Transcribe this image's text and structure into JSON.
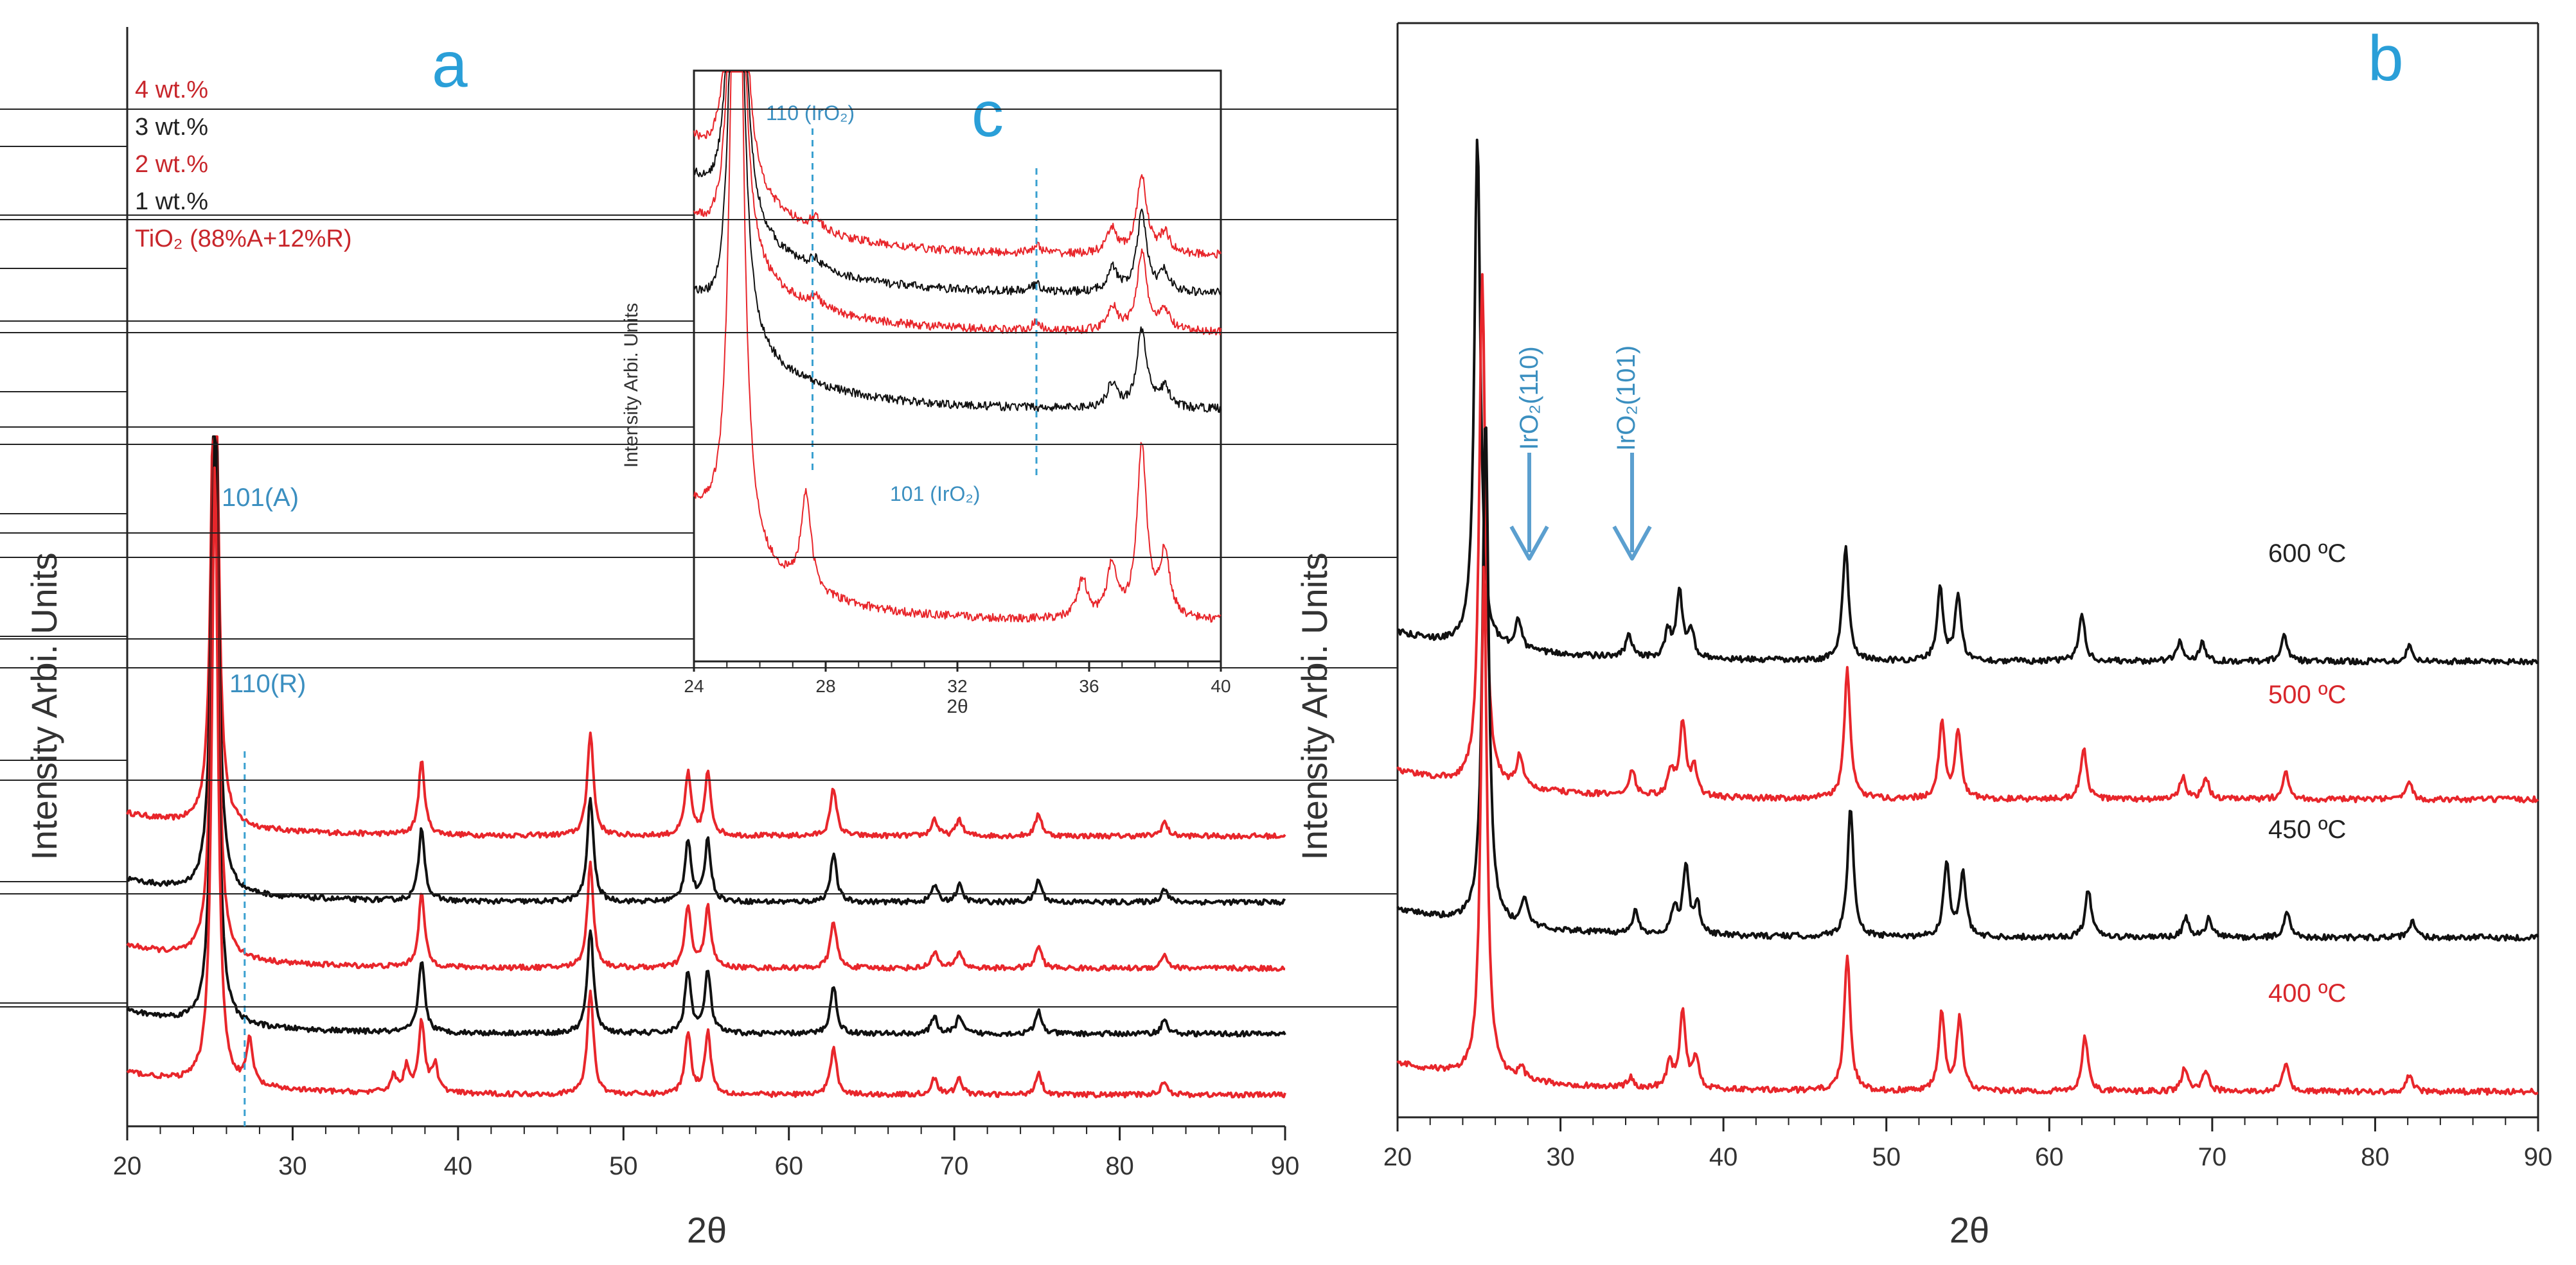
{
  "chart_data": [
    {
      "panel": "a",
      "type": "line",
      "xlabel": "2θ",
      "ylabel": "Intensity Arbi. Units",
      "xlim": [
        20,
        90
      ],
      "xticks": [
        20,
        30,
        40,
        50,
        60,
        70,
        80,
        90
      ],
      "colors": {
        "red": "#e8262b",
        "black": "#111111",
        "blue": "#2a9fd8"
      },
      "legend": [
        {
          "text": "4 wt.%",
          "color": "red"
        },
        {
          "text": "3 wt.%",
          "color": "black"
        },
        {
          "text": "2 wt.%",
          "color": "red"
        },
        {
          "text": "1 wt.%",
          "color": "black"
        },
        {
          "text": "TiO₂ (88%A+12%R)",
          "color": "red"
        }
      ],
      "annotations": [
        "101(A)",
        "110(R)"
      ],
      "reference_line_x": 27.1,
      "series": [
        {
          "name": "4 wt.%",
          "color": "red",
          "offset": 4,
          "peaks": [
            [
              25.3,
              22
            ],
            [
              37.8,
              2.6
            ],
            [
              48.0,
              3.7
            ],
            [
              53.9,
              2.2
            ],
            [
              55.1,
              2.2
            ],
            [
              62.7,
              1.7
            ],
            [
              68.8,
              0.6
            ],
            [
              70.3,
              0.6
            ],
            [
              75.1,
              0.8
            ],
            [
              82.7,
              0.5
            ]
          ]
        },
        {
          "name": "3 wt.%",
          "color": "black",
          "offset": 3,
          "peaks": [
            [
              25.3,
              22
            ],
            [
              37.8,
              2.6
            ],
            [
              48.0,
              3.7
            ],
            [
              53.9,
              2.2
            ],
            [
              55.1,
              2.2
            ],
            [
              62.7,
              1.7
            ],
            [
              68.8,
              0.6
            ],
            [
              70.3,
              0.6
            ],
            [
              75.1,
              0.8
            ],
            [
              82.7,
              0.5
            ]
          ]
        },
        {
          "name": "2 wt.%",
          "color": "red",
          "offset": 2,
          "peaks": [
            [
              25.3,
              22
            ],
            [
              37.8,
              2.6
            ],
            [
              48.0,
              3.7
            ],
            [
              53.9,
              2.2
            ],
            [
              55.1,
              2.2
            ],
            [
              62.7,
              1.7
            ],
            [
              68.8,
              0.6
            ],
            [
              70.3,
              0.6
            ],
            [
              75.1,
              0.8
            ],
            [
              82.7,
              0.5
            ]
          ]
        },
        {
          "name": "1 wt.%",
          "color": "black",
          "offset": 1,
          "peaks": [
            [
              25.3,
              22
            ],
            [
              37.8,
              2.6
            ],
            [
              48.0,
              3.7
            ],
            [
              53.9,
              2.2
            ],
            [
              55.1,
              2.2
            ],
            [
              62.7,
              1.7
            ],
            [
              68.8,
              0.6
            ],
            [
              70.3,
              0.6
            ],
            [
              75.1,
              0.8
            ],
            [
              82.7,
              0.5
            ]
          ]
        },
        {
          "name": "TiO₂ (88%A+12%R)",
          "color": "red",
          "offset": 0,
          "peaks": [
            [
              25.3,
              22
            ],
            [
              27.4,
              1.6
            ],
            [
              36.1,
              0.6
            ],
            [
              36.9,
              0.9
            ],
            [
              37.8,
              2.5
            ],
            [
              38.6,
              1.0
            ],
            [
              48.0,
              3.7
            ],
            [
              53.9,
              2.2
            ],
            [
              55.1,
              2.2
            ],
            [
              62.7,
              1.7
            ],
            [
              68.8,
              0.6
            ],
            [
              70.3,
              0.6
            ],
            [
              75.1,
              0.8
            ],
            [
              82.7,
              0.5
            ]
          ]
        }
      ]
    },
    {
      "panel": "c",
      "type": "line",
      "inset_of": "a",
      "xlabel": "2θ",
      "ylabel": "Intensity Arbi. Units",
      "xlim": [
        24,
        40
      ],
      "xticks": [
        24,
        28,
        32,
        36,
        40
      ],
      "annotations": [
        "110 (IrO₂)",
        "101 (IrO₂)"
      ],
      "reference_lines_x": [
        27.6,
        34.4
      ],
      "series": [
        {
          "color": "red",
          "offset": 4,
          "peaks": [
            [
              25.3,
              30
            ],
            [
              27.7,
              0.5
            ],
            [
              34.4,
              0.3
            ],
            [
              36.7,
              1.0
            ],
            [
              37.6,
              3.2
            ],
            [
              38.3,
              0.8
            ]
          ]
        },
        {
          "color": "black",
          "offset": 3,
          "peaks": [
            [
              25.3,
              30
            ],
            [
              27.7,
              0.4
            ],
            [
              34.4,
              0.3
            ],
            [
              36.7,
              1.0
            ],
            [
              37.6,
              3.2
            ],
            [
              38.3,
              0.8
            ]
          ]
        },
        {
          "color": "red",
          "offset": 2,
          "peaks": [
            [
              25.3,
              30
            ],
            [
              27.7,
              0.4
            ],
            [
              34.4,
              0.3
            ],
            [
              36.7,
              1.0
            ],
            [
              37.6,
              3.2
            ],
            [
              38.3,
              0.8
            ]
          ]
        },
        {
          "color": "black",
          "offset": 1,
          "peaks": [
            [
              25.3,
              30
            ],
            [
              36.7,
              1.0
            ],
            [
              37.6,
              3.2
            ],
            [
              38.3,
              0.8
            ]
          ]
        },
        {
          "color": "red",
          "offset": 0,
          "peaks": [
            [
              25.3,
              40
            ],
            [
              27.4,
              4.0
            ],
            [
              35.8,
              1.6
            ],
            [
              36.7,
              2.2
            ],
            [
              37.6,
              7.0
            ],
            [
              38.3,
              2.6
            ]
          ]
        }
      ]
    },
    {
      "panel": "b",
      "type": "line",
      "xlabel": "2θ",
      "ylabel": "Intensity Arbi. Units",
      "xlim": [
        20,
        90
      ],
      "xticks": [
        20,
        30,
        40,
        50,
        60,
        70,
        80,
        90
      ],
      "annotations": [
        "IrO₂(110)",
        "IrO₂(101)"
      ],
      "series": [
        {
          "name": "600 ºC",
          "color": "black",
          "offset": 3,
          "peaks": [
            [
              24.9,
              16
            ],
            [
              27.4,
              1.0
            ],
            [
              34.2,
              0.7
            ],
            [
              36.6,
              0.8
            ],
            [
              37.3,
              2.1
            ],
            [
              38.0,
              0.9
            ],
            [
              47.5,
              3.6
            ],
            [
              53.3,
              2.3
            ],
            [
              54.4,
              2.0
            ],
            [
              62.0,
              1.5
            ],
            [
              68.0,
              0.6
            ],
            [
              69.4,
              0.6
            ],
            [
              74.4,
              0.8
            ],
            [
              82.1,
              0.5
            ]
          ]
        },
        {
          "name": "500 ºC",
          "color": "red",
          "offset": 2,
          "peaks": [
            [
              25.2,
              16
            ],
            [
              27.5,
              1.0
            ],
            [
              34.4,
              0.8
            ],
            [
              36.8,
              0.8
            ],
            [
              37.5,
              2.3
            ],
            [
              38.2,
              0.9
            ],
            [
              47.6,
              4.0
            ],
            [
              53.4,
              2.4
            ],
            [
              54.4,
              2.1
            ],
            [
              62.1,
              1.6
            ],
            [
              68.2,
              0.7
            ],
            [
              69.6,
              0.7
            ],
            [
              74.5,
              0.9
            ],
            [
              82.1,
              0.5
            ]
          ]
        },
        {
          "name": "450 ºC",
          "color": "black",
          "offset": 1,
          "peaks": [
            [
              25.4,
              16
            ],
            [
              27.8,
              0.9
            ],
            [
              34.6,
              0.7
            ],
            [
              37.0,
              0.8
            ],
            [
              37.7,
              2.1
            ],
            [
              38.4,
              0.9
            ],
            [
              47.8,
              4.0
            ],
            [
              53.7,
              2.3
            ],
            [
              54.7,
              2.0
            ],
            [
              62.4,
              1.5
            ],
            [
              68.4,
              0.6
            ],
            [
              69.8,
              0.6
            ],
            [
              74.6,
              0.8
            ],
            [
              82.3,
              0.5
            ]
          ]
        },
        {
          "name": "400 ºC",
          "color": "red",
          "offset": 0,
          "peaks": [
            [
              25.3,
              16
            ],
            [
              27.6,
              0.4
            ],
            [
              34.3,
              0.3
            ],
            [
              36.7,
              0.8
            ],
            [
              37.5,
              2.4
            ],
            [
              38.3,
              1.0
            ],
            [
              47.6,
              4.2
            ],
            [
              53.4,
              2.5
            ],
            [
              54.5,
              2.3
            ],
            [
              62.2,
              1.7
            ],
            [
              68.3,
              0.7
            ],
            [
              69.6,
              0.7
            ],
            [
              74.5,
              0.9
            ],
            [
              82.1,
              0.5
            ]
          ]
        }
      ]
    }
  ],
  "panel_labels": {
    "a": "a",
    "b": "b",
    "c": "c"
  }
}
